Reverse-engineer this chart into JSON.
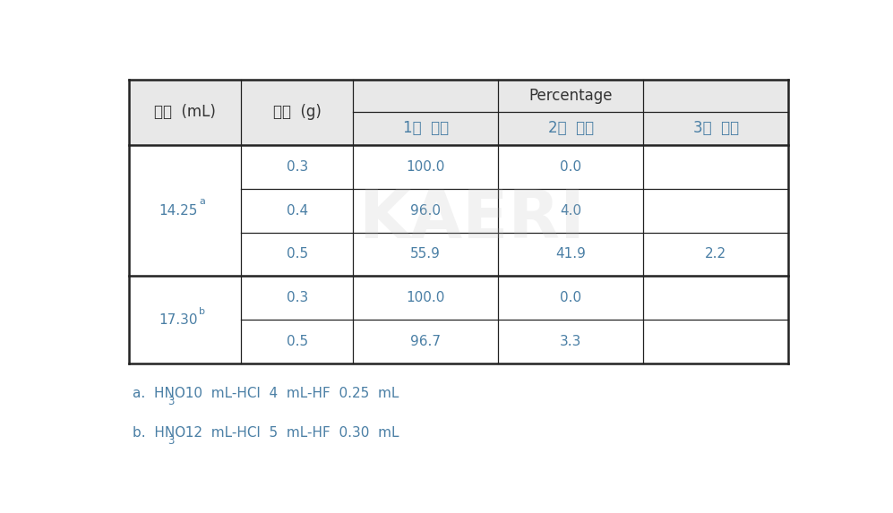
{
  "header_bg": "#e8e8e8",
  "cell_bg": "#ffffff",
  "border_color": "#222222",
  "text_color": "#333333",
  "teal_color": "#4a7fa5",
  "col1_header": "부피  (mL)",
  "col2_header": "무게  (g)",
  "percentage_header": "Percentage",
  "sub_headers": [
    "1차  용해",
    "2차  용해",
    "3차  용해"
  ],
  "rows": [
    {
      "vol": "14.25",
      "vol_sup": "a",
      "vol_rowspan": 3,
      "entries": [
        {
          "weight": "0.3",
          "p1": "100.0",
          "p2": "0.0",
          "p3": ""
        },
        {
          "weight": "0.4",
          "p1": "96.0",
          "p2": "4.0",
          "p3": ""
        },
        {
          "weight": "0.5",
          "p1": "55.9",
          "p2": "41.9",
          "p3": "2.2"
        }
      ]
    },
    {
      "vol": "17.30",
      "vol_sup": "b",
      "vol_rowspan": 2,
      "entries": [
        {
          "weight": "0.3",
          "p1": "100.0",
          "p2": "0.0",
          "p3": ""
        },
        {
          "weight": "0.5",
          "p1": "96.7",
          "p2": "3.3",
          "p3": ""
        }
      ]
    }
  ],
  "fn_a_prefix": "a.  HNO",
  "fn_a_sub": "3",
  "fn_a_suffix": "  10  mL-HCl  4  mL-HF  0.25  mL",
  "fn_b_prefix": "b.  HNO",
  "fn_b_sub": "3",
  "fn_b_suffix": "  12  mL-HCl  5  mL-HF  0.30  mL",
  "watermark": "KAERI"
}
